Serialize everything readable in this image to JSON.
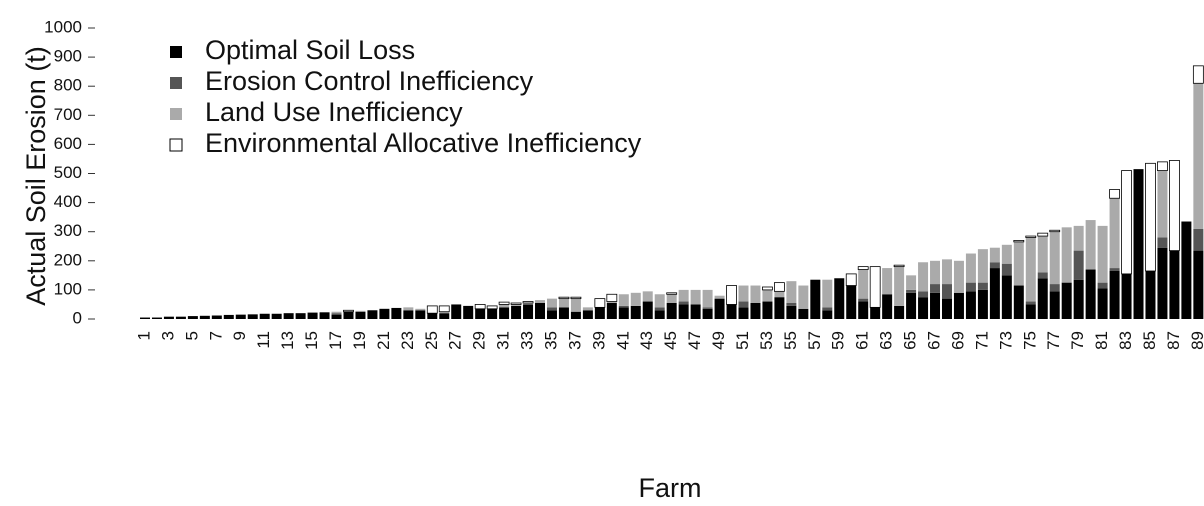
{
  "chart_data": {
    "type": "stacked_bar",
    "y_label": "Actual Soil Erosion (t)",
    "x_label": "Farm",
    "categories": [
      "1",
      null,
      "3",
      null,
      "5",
      null,
      "7",
      null,
      "9",
      null,
      "11",
      null,
      "13",
      null,
      "15",
      null,
      "17",
      null,
      "19",
      null,
      "21",
      null,
      "23",
      null,
      "25",
      null,
      "27",
      null,
      "29",
      null,
      "31",
      null,
      "33",
      null,
      "35",
      null,
      "37",
      null,
      "39",
      null,
      "41",
      null,
      "43",
      null,
      "45",
      null,
      "47",
      null,
      "49",
      null,
      "51",
      null,
      "53",
      null,
      "55",
      null,
      "57",
      null,
      "59",
      null,
      "61",
      null,
      "63",
      null,
      "65",
      null,
      "67",
      null,
      "69",
      null,
      "71",
      null,
      "73",
      null,
      "75",
      null,
      "77",
      null,
      "79",
      null,
      "81",
      null,
      "83",
      null,
      "85",
      null,
      "87",
      null,
      "89"
    ],
    "series": [
      {
        "name": "Optimal Soil Loss",
        "color": "#000000",
        "values": [
          5,
          5,
          8,
          8,
          10,
          11,
          12,
          14,
          15,
          16,
          18,
          18,
          20,
          20,
          22,
          23,
          15,
          25,
          25,
          30,
          35,
          38,
          30,
          30,
          20,
          20,
          50,
          45,
          35,
          35,
          40,
          45,
          50,
          55,
          30,
          40,
          25,
          30,
          40,
          55,
          40,
          45,
          60,
          30,
          55,
          50,
          50,
          35,
          70,
          50,
          40,
          55,
          60,
          75,
          45,
          35,
          135,
          30,
          140,
          115,
          60,
          40,
          85,
          45,
          90,
          75,
          90,
          70,
          90,
          95,
          100,
          175,
          150,
          115,
          50,
          140,
          95,
          125,
          135,
          170,
          105,
          165,
          155,
          515,
          165,
          245,
          235,
          335,
          235
        ]
      },
      {
        "name": "Erosion Control Inefficiency",
        "color": "#555555",
        "values": [
          0,
          0,
          0,
          0,
          0,
          0,
          0,
          0,
          0,
          0,
          0,
          0,
          0,
          0,
          0,
          0,
          5,
          0,
          0,
          0,
          0,
          0,
          0,
          0,
          0,
          0,
          0,
          0,
          0,
          0,
          0,
          0,
          0,
          0,
          10,
          0,
          0,
          0,
          0,
          0,
          5,
          0,
          0,
          10,
          0,
          10,
          0,
          5,
          0,
          0,
          20,
          0,
          0,
          0,
          10,
          0,
          0,
          10,
          0,
          0,
          10,
          0,
          0,
          0,
          10,
          20,
          30,
          50,
          0,
          30,
          25,
          20,
          40,
          0,
          10,
          20,
          25,
          0,
          100,
          0,
          20,
          10,
          0,
          0,
          0,
          35,
          0,
          0,
          75
        ]
      },
      {
        "name": "Land Use Inefficiency",
        "color": "#aaaaaa",
        "values": [
          0,
          0,
          0,
          0,
          0,
          0,
          0,
          0,
          0,
          0,
          0,
          0,
          0,
          0,
          0,
          0,
          5,
          0,
          3,
          0,
          0,
          0,
          10,
          5,
          0,
          5,
          0,
          0,
          0,
          0,
          10,
          5,
          5,
          10,
          30,
          30,
          45,
          10,
          0,
          5,
          40,
          45,
          35,
          45,
          30,
          40,
          50,
          60,
          10,
          0,
          55,
          60,
          40,
          20,
          75,
          80,
          0,
          95,
          0,
          0,
          100,
          0,
          90,
          135,
          50,
          100,
          80,
          85,
          110,
          100,
          115,
          50,
          65,
          150,
          220,
          125,
          180,
          190,
          85,
          170,
          195,
          240,
          0,
          0,
          0,
          230,
          0,
          0,
          500
        ]
      },
      {
        "name": "Environmental Allocative Inefficiency",
        "color": "#ffffff",
        "values": [
          0,
          0,
          0,
          0,
          0,
          0,
          0,
          0,
          0,
          0,
          0,
          0,
          0,
          0,
          0,
          0,
          0,
          5,
          0,
          0,
          0,
          0,
          0,
          0,
          25,
          20,
          0,
          0,
          15,
          10,
          8,
          5,
          5,
          0,
          0,
          5,
          5,
          0,
          30,
          25,
          0,
          0,
          0,
          0,
          5,
          0,
          0,
          0,
          0,
          65,
          0,
          0,
          10,
          30,
          0,
          0,
          0,
          0,
          0,
          40,
          10,
          140,
          0,
          5,
          0,
          0,
          0,
          0,
          0,
          0,
          0,
          0,
          0,
          5,
          5,
          10,
          5,
          0,
          0,
          0,
          0,
          30,
          355,
          0,
          370,
          30,
          310,
          0,
          60
        ]
      }
    ],
    "ylim": [
      0,
      1000
    ],
    "yticks": [
      0,
      100,
      200,
      300,
      400,
      500,
      600,
      700,
      800,
      900,
      1000
    ]
  }
}
